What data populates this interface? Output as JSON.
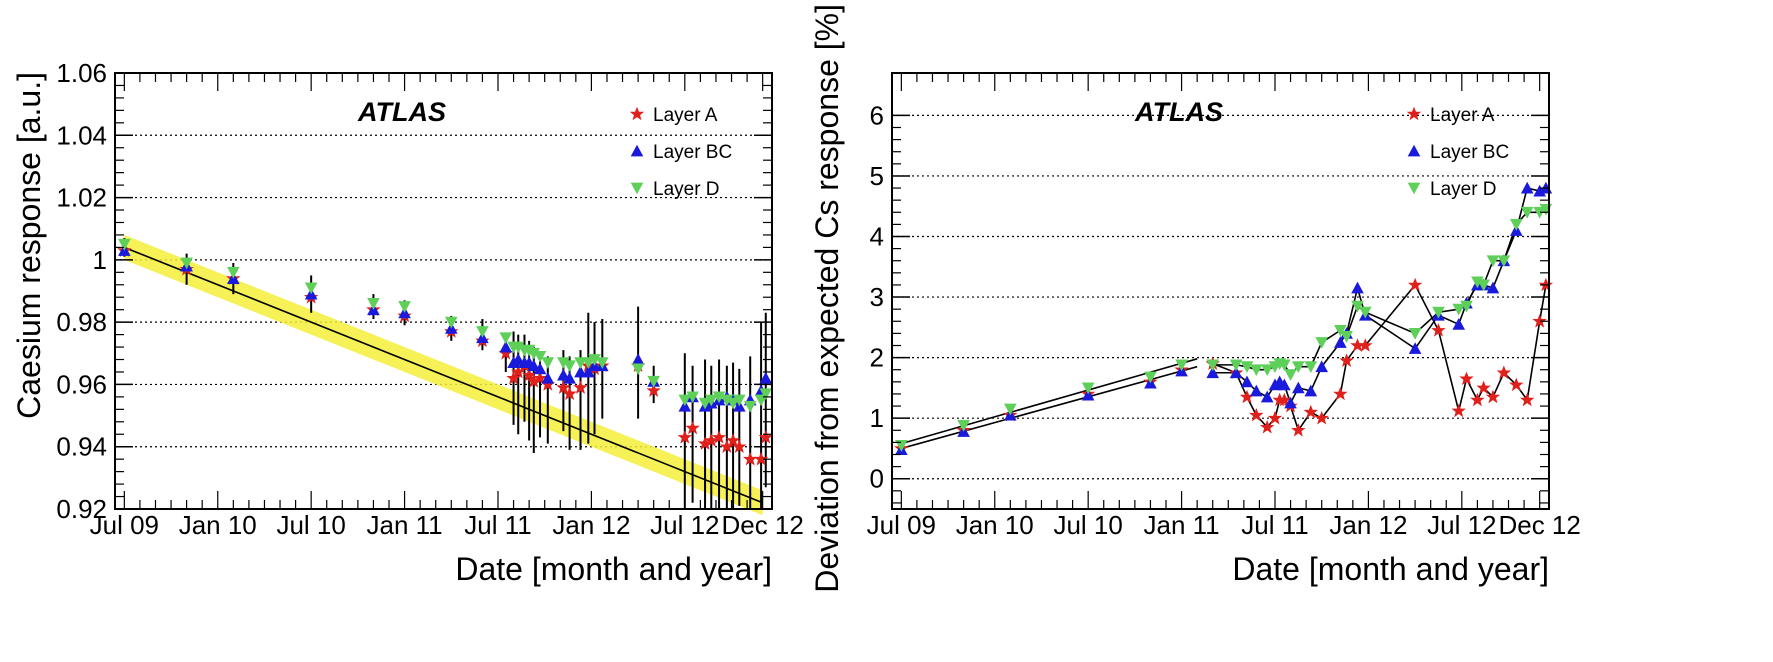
{
  "chart_data": [
    {
      "type": "scatter",
      "panel": "left",
      "atlas_label": "ATLAS",
      "xlabel": "Date [month and year]",
      "ylabel": "Caesium response [a.u.]",
      "x_unit": "months since Jul 2009",
      "xlim": [
        -0.6,
        41.6
      ],
      "ylim": [
        0.92,
        1.06
      ],
      "x_ticks": [
        {
          "label": "Jul 09",
          "value": 0
        },
        {
          "label": "Jan 10",
          "value": 6
        },
        {
          "label": "Jul 10",
          "value": 12
        },
        {
          "label": "Jan 11",
          "value": 18
        },
        {
          "label": "Jul 11",
          "value": 24
        },
        {
          "label": "Jan 12",
          "value": 30
        },
        {
          "label": "Jul 12",
          "value": 36
        },
        {
          "label": "Dec 12",
          "value": 41
        }
      ],
      "y_ticks": [
        {
          "label": "0.92",
          "value": 0.92
        },
        {
          "label": "0.94",
          "value": 0.94
        },
        {
          "label": "0.96",
          "value": 0.96
        },
        {
          "label": "0.98",
          "value": 0.98
        },
        {
          "label": "1",
          "value": 1.0
        },
        {
          "label": "1.02",
          "value": 1.02
        },
        {
          "label": "1.04",
          "value": 1.04
        },
        {
          "label": "1.06",
          "value": 1.06
        }
      ],
      "grid_y": true,
      "legend": [
        {
          "label": "Layer A",
          "marker": "star",
          "color": "#e0201b"
        },
        {
          "label": "Layer BC",
          "marker": "triangle-up",
          "color": "#1a1adc"
        },
        {
          "label": "Layer D",
          "marker": "triangle-down",
          "color": "#5ed05a"
        }
      ],
      "legend_position": "top-right",
      "expected_line": {
        "x": [
          0,
          41
        ],
        "y": [
          1.004,
          0.922
        ],
        "band": 0.004,
        "band_color": "#f3ef38"
      },
      "series": [
        {
          "name": "Layer A",
          "marker": "star",
          "color": "#e0201b",
          "x": [
            0,
            4,
            7,
            12,
            16,
            18,
            21,
            23,
            24.5,
            25,
            25.3,
            25.7,
            26,
            26.3,
            26.7,
            27.2,
            28.2,
            28.6,
            29.3,
            29.8,
            30.2,
            30.7,
            33,
            34,
            36,
            36.5,
            37.3,
            37.7,
            38.2,
            38.7,
            39.1,
            39.5,
            40.2,
            40.9,
            41.2
          ],
          "y": [
            1.003,
            0.997,
            0.994,
            0.988,
            0.984,
            0.982,
            0.977,
            0.974,
            0.97,
            0.962,
            0.964,
            0.966,
            0.963,
            0.961,
            0.962,
            0.96,
            0.959,
            0.957,
            0.959,
            0.966,
            0.965,
            0.966,
            0.966,
            0.958,
            0.943,
            0.946,
            0.941,
            0.942,
            0.943,
            0.94,
            0.942,
            0.94,
            0.936,
            0.936,
            0.943
          ]
        },
        {
          "name": "Layer BC",
          "marker": "triangle-up",
          "color": "#1a1adc",
          "x": [
            0,
            4,
            7,
            12,
            16,
            18,
            21,
            23,
            24.5,
            25,
            25.3,
            25.7,
            26,
            26.3,
            26.7,
            27.2,
            28.2,
            28.6,
            29.3,
            29.8,
            30.2,
            30.7,
            33,
            34,
            36,
            36.5,
            37.3,
            37.7,
            38.2,
            38.7,
            39.1,
            39.5,
            40.2,
            40.9,
            41.2
          ],
          "y": [
            1.003,
            0.998,
            0.994,
            0.989,
            0.984,
            0.983,
            0.978,
            0.975,
            0.972,
            0.967,
            0.968,
            0.967,
            0.967,
            0.966,
            0.965,
            0.962,
            0.963,
            0.962,
            0.964,
            0.964,
            0.966,
            0.966,
            0.968,
            0.961,
            0.953,
            0.956,
            0.953,
            0.954,
            0.955,
            0.956,
            0.955,
            0.953,
            0.955,
            0.958,
            0.962
          ]
        },
        {
          "name": "Layer D",
          "marker": "triangle-down",
          "color": "#5ed05a",
          "x": [
            0,
            4,
            7,
            12,
            16,
            18,
            21,
            23,
            24.5,
            25,
            25.3,
            25.7,
            26,
            26.3,
            26.7,
            27.2,
            28.2,
            28.6,
            29.3,
            29.8,
            30.2,
            30.7,
            33,
            34,
            36,
            36.5,
            37.3,
            37.7,
            38.2,
            38.7,
            39.1,
            39.5,
            40.2,
            40.9,
            41.2
          ],
          "y": [
            1.005,
            0.999,
            0.996,
            0.991,
            0.986,
            0.985,
            0.98,
            0.977,
            0.975,
            0.972,
            0.972,
            0.971,
            0.971,
            0.97,
            0.969,
            0.967,
            0.967,
            0.966,
            0.967,
            0.967,
            0.968,
            0.967,
            0.965,
            0.961,
            0.955,
            0.956,
            0.954,
            0.955,
            0.956,
            0.955,
            0.954,
            0.955,
            0.953,
            0.955,
            0.957
          ]
        }
      ],
      "error_bars": {
        "x": [
          0,
          4,
          7,
          12,
          16,
          18,
          21,
          23,
          24.5,
          25,
          25.3,
          25.7,
          26,
          26.3,
          26.7,
          27.2,
          28.2,
          28.6,
          29.3,
          29.8,
          30.2,
          30.7,
          33,
          34,
          36,
          36.5,
          37.3,
          37.7,
          38.2,
          38.7,
          39.1,
          39.5,
          40.2,
          40.9,
          41.2
        ],
        "center": [
          1.004,
          0.997,
          0.994,
          0.989,
          0.985,
          0.983,
          0.978,
          0.976,
          0.97,
          0.962,
          0.96,
          0.962,
          0.958,
          0.955,
          0.956,
          0.955,
          0.958,
          0.954,
          0.955,
          0.962,
          0.962,
          0.965,
          0.967,
          0.96,
          0.945,
          0.944,
          0.942,
          0.941,
          0.943,
          0.942,
          0.942,
          0.943,
          0.941,
          0.95,
          0.955
        ],
        "half_width": [
          0.003,
          0.005,
          0.005,
          0.006,
          0.004,
          0.004,
          0.004,
          0.005,
          0.006,
          0.015,
          0.016,
          0.014,
          0.016,
          0.017,
          0.013,
          0.014,
          0.013,
          0.015,
          0.016,
          0.021,
          0.018,
          0.016,
          0.018,
          0.006,
          0.025,
          0.022,
          0.026,
          0.025,
          0.025,
          0.024,
          0.025,
          0.022,
          0.028,
          0.03,
          0.028
        ]
      }
    },
    {
      "type": "line",
      "panel": "right",
      "atlas_label": "ATLAS",
      "xlabel": "Date [month and year]",
      "ylabel": "Deviation from expected Cs response [%]",
      "x_unit": "months since Jul 2009",
      "xlim": [
        -0.6,
        41.6
      ],
      "ylim": [
        -0.5,
        6.7
      ],
      "x_ticks": [
        {
          "label": "Jul 09",
          "value": 0
        },
        {
          "label": "Jan 10",
          "value": 6
        },
        {
          "label": "Jul 10",
          "value": 12
        },
        {
          "label": "Jan 11",
          "value": 18
        },
        {
          "label": "Jul 11",
          "value": 24
        },
        {
          "label": "Jan 12",
          "value": 30
        },
        {
          "label": "Jul 12",
          "value": 36
        },
        {
          "label": "Dec 12",
          "value": 41
        }
      ],
      "y_ticks": [
        {
          "label": "0",
          "value": 0
        },
        {
          "label": "1",
          "value": 1
        },
        {
          "label": "2",
          "value": 2
        },
        {
          "label": "3",
          "value": 3
        },
        {
          "label": "4",
          "value": 4
        },
        {
          "label": "5",
          "value": 5
        },
        {
          "label": "6",
          "value": 6
        }
      ],
      "grid_y": true,
      "legend": [
        {
          "label": "Layer A",
          "marker": "star",
          "color": "#e0201b"
        },
        {
          "label": "Layer BC",
          "marker": "triangle-up",
          "color": "#1a1adc"
        },
        {
          "label": "Layer D",
          "marker": "triangle-down",
          "color": "#5ed05a"
        }
      ],
      "legend_position": "top-right",
      "series": [
        {
          "name": "Layer A",
          "marker": "star",
          "color": "#e0201b",
          "x": [
            0,
            4,
            7,
            12,
            16,
            18,
            20,
            21.5,
            22.2,
            22.8,
            23.5,
            24,
            24.3,
            24.6,
            25,
            25.5,
            26.3,
            27,
            28.2,
            28.6,
            29.3,
            29.8,
            33,
            34.5,
            35.8,
            36.3,
            37,
            37.4,
            38,
            38.7,
            39.5,
            40.2,
            41,
            41.4
          ],
          "y": [
            0.5,
            0.8,
            1.05,
            1.4,
            1.6,
            1.8,
            1.9,
            1.75,
            1.35,
            1.05,
            0.85,
            1.0,
            1.3,
            1.3,
            1.2,
            0.8,
            1.1,
            1.0,
            1.4,
            1.95,
            2.2,
            2.2,
            3.2,
            2.45,
            1.12,
            1.65,
            1.3,
            1.5,
            1.35,
            1.75,
            1.55,
            1.3,
            2.6,
            3.2
          ]
        },
        {
          "name": "Layer BC",
          "marker": "triangle-up",
          "color": "#1a1adc",
          "x": [
            0,
            4,
            7,
            12,
            16,
            18,
            20,
            21.5,
            22.2,
            22.8,
            23.5,
            24,
            24.3,
            24.6,
            25,
            25.5,
            26.3,
            27,
            28.2,
            28.6,
            29.3,
            29.8,
            33,
            34.5,
            35.8,
            36.3,
            37,
            37.4,
            38,
            38.7,
            39.5,
            40.2,
            41,
            41.4
          ],
          "y": [
            0.48,
            0.78,
            1.05,
            1.38,
            1.58,
            1.78,
            1.75,
            1.75,
            1.6,
            1.45,
            1.35,
            1.55,
            1.6,
            1.55,
            1.25,
            1.5,
            1.45,
            1.85,
            2.25,
            2.4,
            3.15,
            2.7,
            2.15,
            2.7,
            2.55,
            2.9,
            3.2,
            3.2,
            3.15,
            3.6,
            4.1,
            4.8,
            4.75,
            4.8
          ]
        },
        {
          "name": "Layer D",
          "marker": "triangle-down",
          "color": "#5ed05a",
          "x": [
            0,
            4,
            7,
            12,
            16,
            18,
            20,
            21.5,
            22.2,
            22.8,
            23.5,
            24,
            24.3,
            24.6,
            25,
            25.5,
            26.3,
            27,
            28.2,
            28.6,
            29.3,
            29.8,
            33,
            34.5,
            35.8,
            36.3,
            37,
            37.4,
            38,
            38.7,
            39.5,
            40.2,
            41,
            41.4
          ],
          "y": [
            0.55,
            0.88,
            1.15,
            1.5,
            1.68,
            1.88,
            1.88,
            1.88,
            1.85,
            1.8,
            1.8,
            1.85,
            1.9,
            1.88,
            1.72,
            1.85,
            1.85,
            2.25,
            2.45,
            2.35,
            2.85,
            2.75,
            2.4,
            2.75,
            2.8,
            2.85,
            3.25,
            3.2,
            3.6,
            3.6,
            4.2,
            4.4,
            4.4,
            4.45
          ]
        }
      ],
      "trend_lines": [
        {
          "x": [
            0,
            19
          ],
          "y": [
            0.5,
            1.85
          ]
        },
        {
          "x": [
            0,
            19
          ],
          "y": [
            0.58,
            1.98
          ]
        }
      ]
    }
  ]
}
